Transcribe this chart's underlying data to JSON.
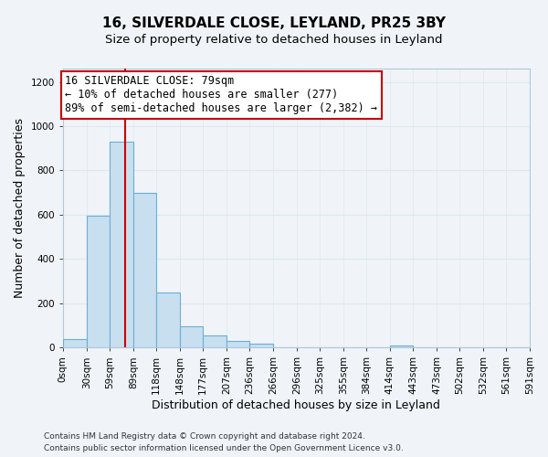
{
  "title": "16, SILVERDALE CLOSE, LEYLAND, PR25 3BY",
  "subtitle": "Size of property relative to detached houses in Leyland",
  "xlabel": "Distribution of detached houses by size in Leyland",
  "ylabel": "Number of detached properties",
  "bin_edges": [
    0,
    30,
    59,
    89,
    118,
    148,
    177,
    207,
    236,
    266,
    296,
    325,
    355,
    384,
    414,
    443,
    473,
    502,
    532,
    561,
    591
  ],
  "bin_labels": [
    "0sqm",
    "30sqm",
    "59sqm",
    "89sqm",
    "118sqm",
    "148sqm",
    "177sqm",
    "207sqm",
    "236sqm",
    "266sqm",
    "296sqm",
    "325sqm",
    "355sqm",
    "384sqm",
    "414sqm",
    "443sqm",
    "473sqm",
    "502sqm",
    "532sqm",
    "561sqm",
    "591sqm"
  ],
  "bar_heights": [
    38,
    597,
    930,
    700,
    248,
    95,
    55,
    30,
    18,
    0,
    0,
    0,
    0,
    0,
    10,
    0,
    0,
    0,
    0,
    0
  ],
  "bar_color": "#c8dff0",
  "bar_edge_color": "#6aafd6",
  "property_line_x": 79,
  "property_line_color": "#cc0000",
  "ylim": [
    0,
    1260
  ],
  "yticks": [
    0,
    200,
    400,
    600,
    800,
    1000,
    1200
  ],
  "annotation_line1": "16 SILVERDALE CLOSE: 79sqm",
  "annotation_line2": "← 10% of detached houses are smaller (277)",
  "annotation_line3": "89% of semi-detached houses are larger (2,382) →",
  "annotation_box_color": "#ffffff",
  "annotation_box_edge": "#cc0000",
  "footnote1": "Contains HM Land Registry data © Crown copyright and database right 2024.",
  "footnote2": "Contains public sector information licensed under the Open Government Licence v3.0.",
  "background_color": "#f0f4f8",
  "grid_color": "#dce8f0",
  "title_fontsize": 11,
  "subtitle_fontsize": 9.5,
  "label_fontsize": 9,
  "tick_fontsize": 7.5,
  "annotation_fontsize": 8.5,
  "footnote_fontsize": 6.5
}
